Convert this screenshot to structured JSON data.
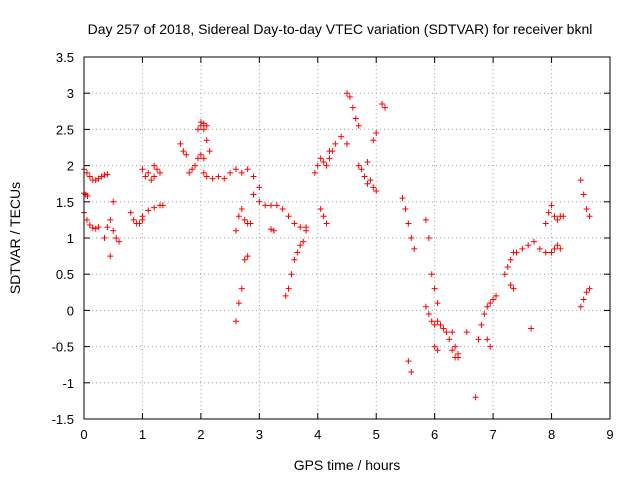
{
  "chart_data": {
    "type": "scatter",
    "title": "Day 257 of 2018, Sidereal Day-to-day VTEC variation (SDTVAR) for receiver bknl",
    "xlabel": "GPS time / hours",
    "ylabel": "SDTVAR / TECUs",
    "xlim": [
      0,
      9
    ],
    "ylim": [
      -1.5,
      3.5
    ],
    "x_ticks": [
      0,
      1,
      2,
      3,
      4,
      5,
      6,
      7,
      8,
      9
    ],
    "y_ticks": [
      -1.5,
      -1,
      -0.5,
      0,
      0.5,
      1,
      1.5,
      2,
      2.5,
      3,
      3.5
    ],
    "x_tick_labels": [
      "0",
      "1",
      "2",
      "3",
      "4",
      "5",
      "6",
      "7",
      "8",
      "9"
    ],
    "y_tick_labels": [
      "-1.5",
      "-1",
      "-0.5",
      "0",
      "0.5",
      "1",
      "1.5",
      "2",
      "2.5",
      "3",
      "3.5"
    ],
    "grid": true,
    "marker": "+",
    "series": [
      {
        "name": "SDTVAR",
        "color": "#ff0000",
        "segments": [
          {
            "x": [
              0.0,
              0.05,
              0.1,
              0.15,
              0.2,
              0.25,
              0.3,
              0.35,
              0.4
            ],
            "y": [
              1.95,
              1.9,
              1.85,
              1.8,
              1.8,
              1.82,
              1.85,
              1.87,
              1.88
            ]
          },
          {
            "x": [
              0.0,
              0.03,
              0.06
            ],
            "y": [
              1.62,
              1.6,
              1.58
            ]
          },
          {
            "x": [
              0.0,
              0.05,
              0.1,
              0.15,
              0.2,
              0.25
            ],
            "y": [
              1.35,
              1.25,
              1.18,
              1.14,
              1.13,
              1.15
            ]
          },
          {
            "x": [
              0.35,
              0.4,
              0.45,
              0.5
            ],
            "y": [
              1.0,
              1.15,
              1.25,
              1.5
            ]
          },
          {
            "x": [
              0.45,
              0.5,
              0.55,
              0.6
            ],
            "y": [
              0.75,
              1.1,
              1.0,
              0.95
            ]
          },
          {
            "x": [
              0.8,
              0.85,
              0.9,
              0.95,
              1.0
            ],
            "y": [
              1.35,
              1.25,
              1.2,
              1.2,
              1.25
            ]
          },
          {
            "x": [
              1.0,
              1.05,
              1.1,
              1.15,
              1.2
            ],
            "y": [
              1.95,
              1.85,
              1.9,
              1.8,
              1.85
            ]
          },
          {
            "x": [
              1.0,
              1.1,
              1.2,
              1.3,
              1.35
            ],
            "y": [
              1.3,
              1.38,
              1.42,
              1.45,
              1.45
            ]
          },
          {
            "x": [
              1.2,
              1.25,
              1.3
            ],
            "y": [
              2.0,
              1.95,
              1.9
            ]
          },
          {
            "x": [
              1.65,
              1.7,
              1.75
            ],
            "y": [
              2.3,
              2.2,
              2.15
            ]
          },
          {
            "x": [
              1.8,
              1.85,
              1.9,
              1.95,
              2.0,
              2.05
            ],
            "y": [
              1.9,
              1.95,
              2.0,
              2.1,
              2.15,
              2.1
            ]
          },
          {
            "x": [
              1.95,
              2.0,
              2.05,
              2.1,
              2.15
            ],
            "y": [
              2.5,
              2.55,
              2.5,
              2.35,
              2.2
            ]
          },
          {
            "x": [
              2.0,
              2.05,
              2.1
            ],
            "y": [
              2.6,
              2.58,
              2.55
            ]
          },
          {
            "x": [
              2.05,
              2.1,
              2.2,
              2.3,
              2.4,
              2.5,
              2.6,
              2.7,
              2.8,
              2.9,
              3.0
            ],
            "y": [
              1.9,
              1.85,
              1.82,
              1.85,
              1.82,
              1.9,
              1.95,
              1.9,
              1.95,
              1.85,
              1.7
            ]
          },
          {
            "x": [
              2.6,
              2.65,
              2.7,
              2.75,
              2.8
            ],
            "y": [
              -0.15,
              0.1,
              0.3,
              0.7,
              0.75
            ]
          },
          {
            "x": [
              2.6,
              2.65,
              2.7,
              2.75,
              2.8,
              2.85
            ],
            "y": [
              1.1,
              1.3,
              1.4,
              1.25,
              1.2,
              1.2
            ]
          },
          {
            "x": [
              2.9,
              3.0,
              3.1,
              3.2,
              3.3,
              3.4,
              3.5,
              3.6,
              3.7,
              3.8
            ],
            "y": [
              1.6,
              1.5,
              1.45,
              1.45,
              1.45,
              1.4,
              1.3,
              1.2,
              1.15,
              1.15
            ]
          },
          {
            "x": [
              3.2,
              3.25
            ],
            "y": [
              1.12,
              1.1
            ]
          },
          {
            "x": [
              3.45,
              3.5,
              3.55,
              3.6,
              3.65,
              3.7,
              3.75,
              3.8
            ],
            "y": [
              0.2,
              0.3,
              0.5,
              0.7,
              0.8,
              0.9,
              0.95,
              1.1
            ]
          },
          {
            "x": [
              3.95,
              4.0,
              4.05,
              4.1,
              4.15,
              4.2,
              4.25
            ],
            "y": [
              1.9,
              2.0,
              2.1,
              2.05,
              2.0,
              2.1,
              2.2
            ]
          },
          {
            "x": [
              4.05,
              4.1,
              4.15
            ],
            "y": [
              1.4,
              1.3,
              1.2
            ]
          },
          {
            "x": [
              4.2,
              4.3,
              4.4,
              4.5
            ],
            "y": [
              2.2,
              2.3,
              2.4,
              2.3
            ]
          },
          {
            "x": [
              4.5,
              4.55,
              4.6,
              4.65,
              4.7
            ],
            "y": [
              3.0,
              2.95,
              2.8,
              2.65,
              2.55
            ]
          },
          {
            "x": [
              4.7,
              4.75,
              4.8,
              4.85
            ],
            "y": [
              2.0,
              1.95,
              1.85,
              1.75
            ]
          },
          {
            "x": [
              4.85,
              4.9,
              4.95,
              5.0
            ],
            "y": [
              2.05,
              1.8,
              1.7,
              1.65
            ]
          },
          {
            "x": [
              4.95,
              5.0
            ],
            "y": [
              2.35,
              2.45
            ]
          },
          {
            "x": [
              5.1,
              5.15
            ],
            "y": [
              2.85,
              2.8
            ]
          },
          {
            "x": [
              5.45,
              5.5,
              5.55,
              5.6,
              5.65
            ],
            "y": [
              1.55,
              1.4,
              1.2,
              1.0,
              0.85
            ]
          },
          {
            "x": [
              5.55,
              5.6
            ],
            "y": [
              -0.7,
              -0.85
            ]
          },
          {
            "x": [
              5.85,
              5.9,
              5.95,
              6.0,
              6.05
            ],
            "y": [
              1.25,
              1.0,
              0.5,
              0.3,
              0.1
            ]
          },
          {
            "x": [
              5.85,
              5.9,
              5.95,
              6.0,
              6.05,
              6.1,
              6.15,
              6.2,
              6.25,
              6.3,
              6.35,
              6.4
            ],
            "y": [
              0.05,
              -0.05,
              -0.15,
              -0.2,
              -0.15,
              -0.2,
              -0.25,
              -0.3,
              -0.4,
              -0.55,
              -0.65,
              -0.6
            ]
          },
          {
            "x": [
              6.0,
              6.05
            ],
            "y": [
              -0.5,
              -0.55
            ]
          },
          {
            "x": [
              6.3,
              6.35,
              6.4
            ],
            "y": [
              -0.3,
              -0.5,
              -0.65
            ]
          },
          {
            "x": [
              6.55
            ],
            "y": [
              -0.3
            ]
          },
          {
            "x": [
              6.7
            ],
            "y": [
              -1.2
            ]
          },
          {
            "x": [
              6.75,
              6.8,
              6.85,
              6.9,
              6.95,
              7.0,
              7.05
            ],
            "y": [
              -0.4,
              -0.2,
              -0.05,
              0.05,
              0.1,
              0.15,
              0.2
            ]
          },
          {
            "x": [
              6.9,
              6.95
            ],
            "y": [
              -0.4,
              -0.5
            ]
          },
          {
            "x": [
              7.2,
              7.25,
              7.3,
              7.35
            ],
            "y": [
              0.5,
              0.6,
              0.7,
              0.8
            ]
          },
          {
            "x": [
              7.3,
              7.35
            ],
            "y": [
              0.35,
              0.3
            ]
          },
          {
            "x": [
              7.4,
              7.5,
              7.6,
              7.7,
              7.8,
              7.9
            ],
            "y": [
              0.8,
              0.85,
              0.9,
              0.95,
              0.85,
              0.8
            ]
          },
          {
            "x": [
              7.65
            ],
            "y": [
              -0.25
            ]
          },
          {
            "x": [
              7.9,
              7.95,
              8.0,
              8.05,
              8.1,
              8.15,
              8.2
            ],
            "y": [
              1.2,
              1.35,
              1.45,
              1.3,
              1.25,
              1.3,
              1.3
            ]
          },
          {
            "x": [
              8.0,
              8.05,
              8.1,
              8.15
            ],
            "y": [
              0.8,
              0.85,
              0.9,
              0.85
            ]
          },
          {
            "x": [
              8.5,
              8.55,
              8.6,
              8.65
            ],
            "y": [
              1.8,
              1.6,
              1.4,
              1.3
            ]
          },
          {
            "x": [
              8.5,
              8.55,
              8.6,
              8.65
            ],
            "y": [
              0.05,
              0.15,
              0.25,
              0.3
            ]
          }
        ]
      }
    ]
  }
}
